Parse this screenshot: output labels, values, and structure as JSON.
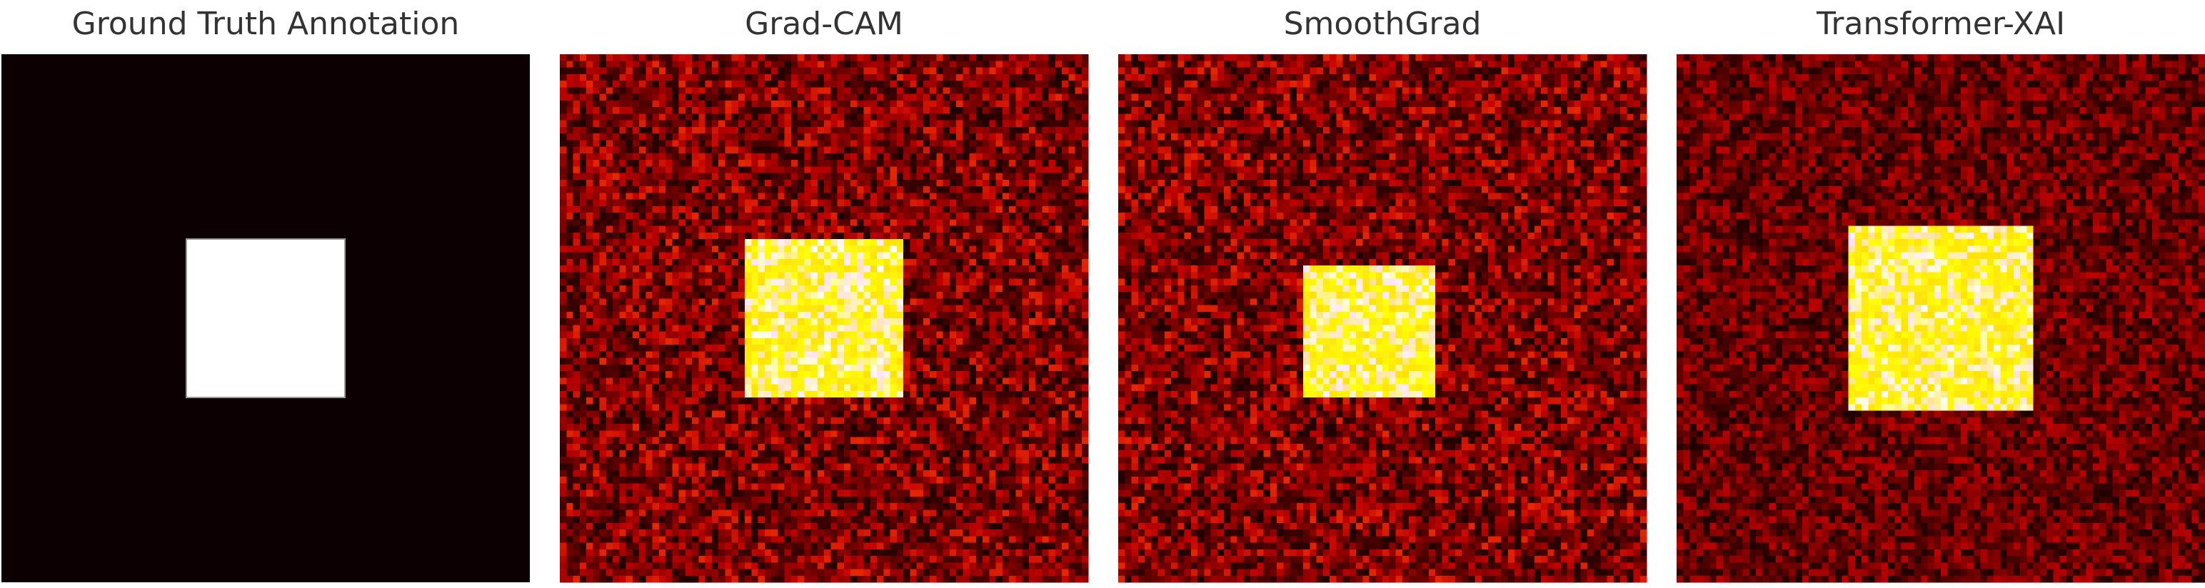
{
  "panels": [
    {
      "title": "Ground Truth Annotation"
    },
    {
      "title": "Grad-CAM"
    },
    {
      "title": "SmoothGrad"
    },
    {
      "title": "Transformer-XAI"
    }
  ]
}
